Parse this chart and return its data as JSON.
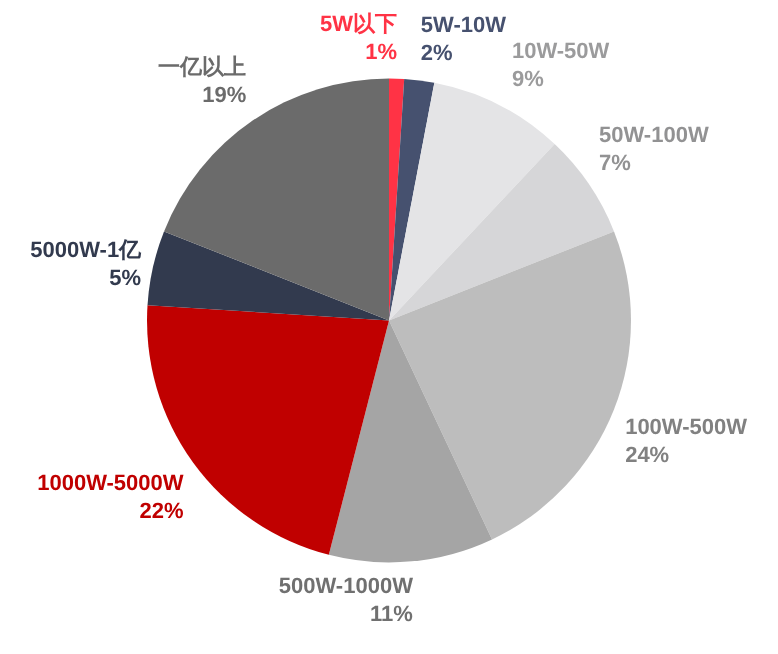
{
  "chart_data": {
    "type": "pie",
    "categories": [
      "5W以下",
      "5W-10W",
      "10W-50W",
      "50W-100W",
      "100W-500W",
      "500W-1000W",
      "1000W-5000W",
      "5000W-1亿",
      "一亿以上"
    ],
    "values": [
      1,
      2,
      9,
      7,
      24,
      11,
      22,
      5,
      19
    ],
    "value_labels": [
      "1%",
      "2%",
      "9%",
      "7%",
      "24%",
      "11%",
      "22%",
      "5%",
      "19%"
    ],
    "colors": [
      "#ff3345",
      "#46516f",
      "#e4e4e6",
      "#d6d6d8",
      "#bdbdbd",
      "#a5a5a5",
      "#c00000",
      "#323a4e",
      "#6b6b6b"
    ],
    "legend": false
  }
}
